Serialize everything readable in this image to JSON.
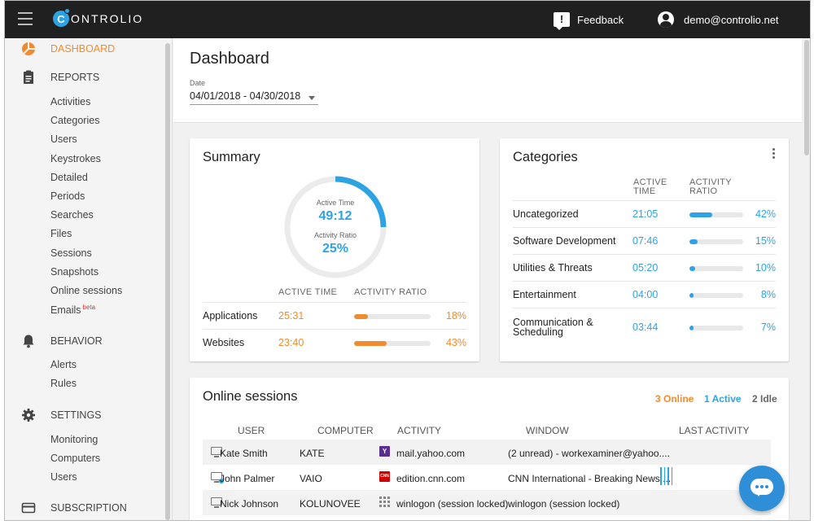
{
  "app": {
    "logo_letter": "C",
    "logo_text": "ONTROLIO"
  },
  "topbar": {
    "feedback_label": "Feedback",
    "user_email": "demo@controlio.net"
  },
  "sidebar": {
    "sections": [
      {
        "label": "DASHBOARD",
        "icon": "pie-chart-icon",
        "active": true,
        "items": []
      },
      {
        "label": "REPORTS",
        "icon": "clipboard-icon",
        "items": [
          "Activities",
          "Categories",
          "Users",
          "Keystrokes",
          "Detailed",
          "Periods",
          "Searches",
          "Files",
          "Sessions",
          "Snapshots",
          "Online sessions",
          "Emails"
        ]
      },
      {
        "label": "BEHAVIOR",
        "icon": "bell-icon",
        "items": [
          "Alerts",
          "Rules"
        ]
      },
      {
        "label": "SETTINGS",
        "icon": "gear-icon",
        "items": [
          "Monitoring",
          "Computers",
          "Users"
        ]
      },
      {
        "label": "SUBSCRIPTION",
        "icon": "card-icon",
        "items": []
      }
    ],
    "emails_badge": "beta"
  },
  "header": {
    "title": "Dashboard",
    "date_label": "Date",
    "date_value": "04/01/2018 - 04/30/2018"
  },
  "summary": {
    "title": "Summary",
    "active_time_label": "Active Time",
    "active_time_value": "49:12",
    "activity_ratio_label": "Activity Ratio",
    "activity_ratio_value": "25%",
    "activity_ratio_fraction": 0.25,
    "col_active": "ACTIVE TIME",
    "col_ratio": "ACTIVITY RATIO",
    "rows": [
      {
        "name": "Applications",
        "time": "25:31",
        "pct": "18%",
        "ratio": 0.18
      },
      {
        "name": "Websites",
        "time": "23:40",
        "pct": "43%",
        "ratio": 0.43
      }
    ]
  },
  "categories": {
    "title": "Categories",
    "col_active_1": "ACTIVE",
    "col_active_2": "TIME",
    "col_ratio_1": "ACTIVITY",
    "col_ratio_2": "RATIO",
    "rows": [
      {
        "name": "Uncategorized",
        "time": "21:05",
        "pct": "42%",
        "ratio": 0.42
      },
      {
        "name": "Software Development",
        "time": "07:46",
        "pct": "15%",
        "ratio": 0.15
      },
      {
        "name": "Utilities & Threats",
        "time": "05:20",
        "pct": "10%",
        "ratio": 0.1
      },
      {
        "name": "Entertainment",
        "time": "04:00",
        "pct": "8%",
        "ratio": 0.08
      },
      {
        "name": "Communication &",
        "name2": "Scheduling",
        "time": "03:44",
        "pct": "7%",
        "ratio": 0.07
      }
    ]
  },
  "online": {
    "title": "Online sessions",
    "online_count": "3 Online",
    "active_count": "1 Active",
    "idle_count": "2 Idle",
    "headers": {
      "user": "USER",
      "computer": "COMPUTER",
      "activity": "ACTIVITY",
      "window": "WINDOW",
      "last": "LAST ACTIVITY"
    },
    "rows": [
      {
        "user": "Kate Smith",
        "computer": "KATE",
        "activity": "mail.yahoo.com",
        "favicon": "yahoo-favicon",
        "favicon_text": "Y",
        "window": "(2 unread) - workexaminer@yahoo...."
      },
      {
        "user": "John Palmer",
        "computer": "VAIO",
        "activity": "edition.cnn.com",
        "favicon": "cnn-favicon",
        "favicon_text": "CNN",
        "window": "CNN International - Breaking News,..."
      },
      {
        "user": "Nick Johnson",
        "computer": "KOLUNOVEE",
        "activity": "winlogon (session locked)",
        "favicon": "grid-icon",
        "favicon_text": "",
        "window": "winlogon (session locked)"
      }
    ]
  },
  "colors": {
    "accent_blue": "#2ea3e3",
    "accent_orange": "#f08c2f",
    "topbar": "#202020"
  }
}
